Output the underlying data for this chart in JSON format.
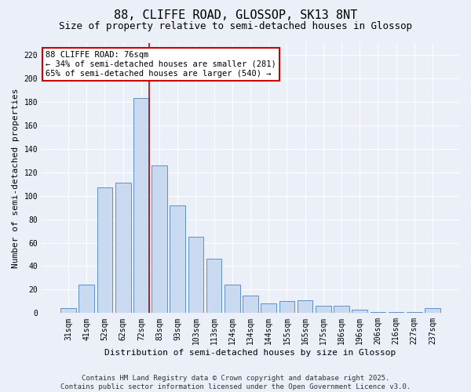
{
  "title": "88, CLIFFE ROAD, GLOSSOP, SK13 8NT",
  "subtitle": "Size of property relative to semi-detached houses in Glossop",
  "xlabel": "Distribution of semi-detached houses by size in Glossop",
  "ylabel": "Number of semi-detached properties",
  "categories": [
    "31sqm",
    "41sqm",
    "52sqm",
    "62sqm",
    "72sqm",
    "83sqm",
    "93sqm",
    "103sqm",
    "113sqm",
    "124sqm",
    "134sqm",
    "144sqm",
    "155sqm",
    "165sqm",
    "175sqm",
    "186sqm",
    "196sqm",
    "206sqm",
    "216sqm",
    "227sqm",
    "237sqm"
  ],
  "values": [
    4,
    24,
    107,
    111,
    183,
    126,
    92,
    65,
    46,
    24,
    15,
    8,
    10,
    11,
    6,
    6,
    3,
    1,
    1,
    1,
    4
  ],
  "bar_color": "#c9d9f0",
  "bar_edge_color": "#6090c8",
  "vline_index": 4,
  "vline_color": "#cc0000",
  "annotation_line1": "88 CLIFFE ROAD: 76sqm",
  "annotation_line2": "← 34% of semi-detached houses are smaller (281)",
  "annotation_line3": "65% of semi-detached houses are larger (540) →",
  "annotation_box_color": "#ffffff",
  "annotation_box_edge_color": "#cc0000",
  "ylim": [
    0,
    230
  ],
  "yticks": [
    0,
    20,
    40,
    60,
    80,
    100,
    120,
    140,
    160,
    180,
    200,
    220
  ],
  "footnote_line1": "Contains HM Land Registry data © Crown copyright and database right 2025.",
  "footnote_line2": "Contains public sector information licensed under the Open Government Licence v3.0.",
  "background_color": "#eaeff8",
  "grid_color": "#ffffff",
  "title_fontsize": 11,
  "subtitle_fontsize": 9,
  "xlabel_fontsize": 8,
  "ylabel_fontsize": 8,
  "tick_fontsize": 7,
  "annotation_fontsize": 7.5,
  "footnote_fontsize": 6.5
}
